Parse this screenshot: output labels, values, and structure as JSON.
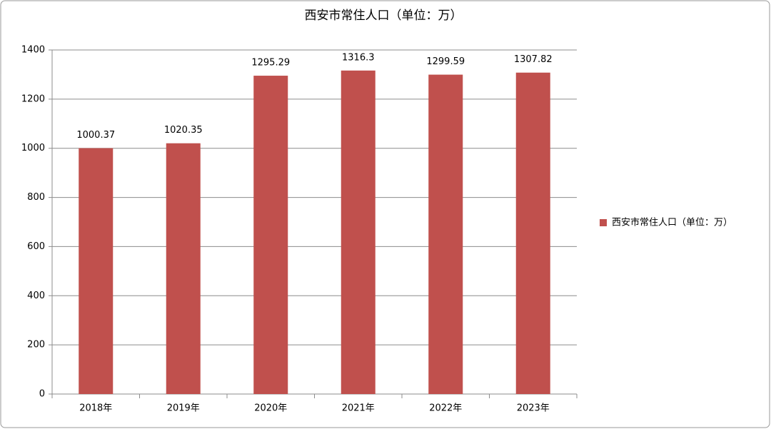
{
  "chart_data": {
    "type": "bar",
    "title": "西安市常住人口（单位：万）",
    "categories": [
      "2018年",
      "2019年",
      "2020年",
      "2021年",
      "2022年",
      "2023年"
    ],
    "series": [
      {
        "name": "西安市常住人口（单位：万）",
        "color": "#c0504d",
        "values": [
          1000.37,
          1020.35,
          1295.29,
          1316.3,
          1299.59,
          1307.82
        ]
      }
    ],
    "ylim": [
      0,
      1400
    ],
    "yticks": [
      0,
      200,
      400,
      600,
      800,
      1000,
      1200,
      1400
    ],
    "grid": true,
    "legend": "right"
  }
}
